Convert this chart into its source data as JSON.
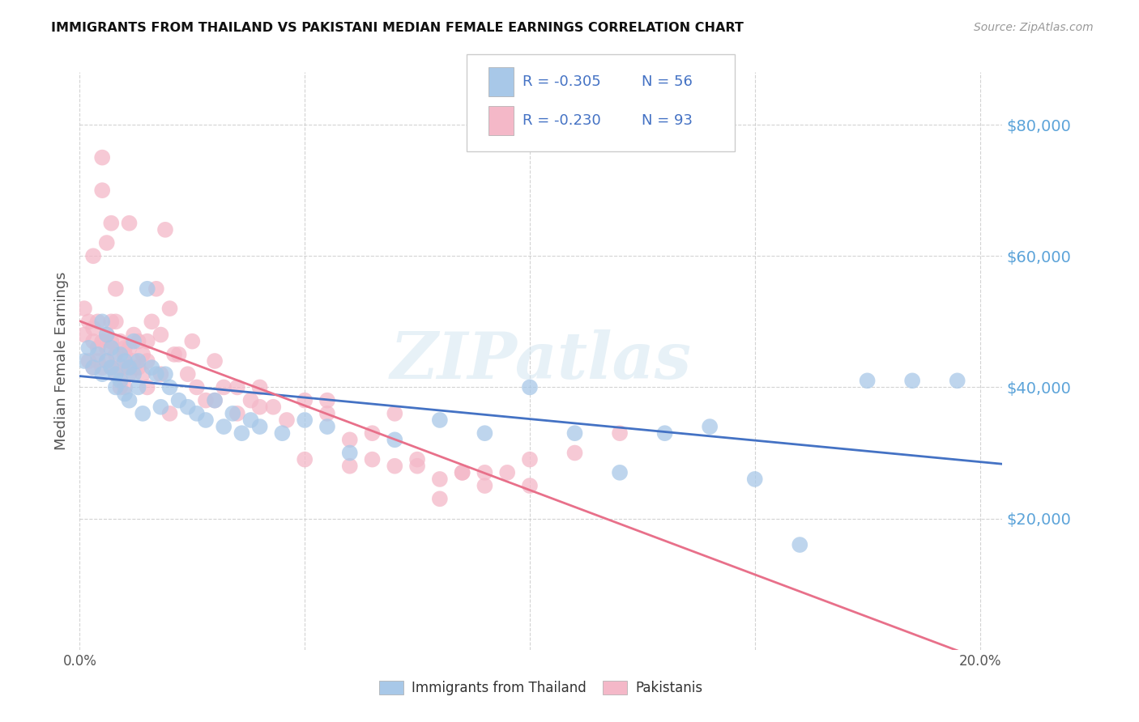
{
  "title": "IMMIGRANTS FROM THAILAND VS PAKISTANI MEDIAN FEMALE EARNINGS CORRELATION CHART",
  "source": "Source: ZipAtlas.com",
  "ylabel": "Median Female Earnings",
  "yticks": [
    20000,
    40000,
    60000,
    80000
  ],
  "ytick_labels": [
    "$20,000",
    "$40,000",
    "$60,000",
    "$80,000"
  ],
  "xticks": [
    0.0,
    0.05,
    0.1,
    0.15,
    0.2
  ],
  "xtick_labels": [
    "0.0%",
    "",
    "",
    "",
    "20.0%"
  ],
  "xlim": [
    0.0,
    0.205
  ],
  "ylim": [
    0,
    88000
  ],
  "legend_r1": "R = -0.305",
  "legend_n1": "N = 56",
  "legend_r2": "R = -0.230",
  "legend_n2": "N = 93",
  "color_thailand": "#a8c8e8",
  "color_pakistan": "#f4b8c8",
  "color_thailand_line": "#4472c4",
  "color_pakistan_line": "#e8708a",
  "color_ytick": "#5ba3d9",
  "background_color": "#ffffff",
  "watermark": "ZIPatlas",
  "thailand_x": [
    0.001,
    0.002,
    0.003,
    0.004,
    0.005,
    0.005,
    0.006,
    0.006,
    0.007,
    0.007,
    0.008,
    0.008,
    0.009,
    0.009,
    0.01,
    0.01,
    0.011,
    0.011,
    0.012,
    0.012,
    0.013,
    0.013,
    0.014,
    0.015,
    0.016,
    0.017,
    0.018,
    0.019,
    0.02,
    0.022,
    0.024,
    0.026,
    0.028,
    0.03,
    0.032,
    0.034,
    0.036,
    0.038,
    0.04,
    0.045,
    0.05,
    0.055,
    0.06,
    0.07,
    0.08,
    0.09,
    0.1,
    0.11,
    0.12,
    0.13,
    0.14,
    0.15,
    0.16,
    0.175,
    0.185,
    0.195
  ],
  "thailand_y": [
    44000,
    46000,
    43000,
    45000,
    42000,
    50000,
    48000,
    44000,
    43000,
    46000,
    42000,
    40000,
    45000,
    41000,
    44000,
    39000,
    43000,
    38000,
    47000,
    42000,
    44000,
    40000,
    36000,
    55000,
    43000,
    42000,
    37000,
    42000,
    40000,
    38000,
    37000,
    36000,
    35000,
    38000,
    34000,
    36000,
    33000,
    35000,
    34000,
    33000,
    35000,
    34000,
    30000,
    32000,
    35000,
    33000,
    40000,
    33000,
    27000,
    33000,
    34000,
    26000,
    16000,
    41000,
    41000,
    41000
  ],
  "pakistan_x": [
    0.001,
    0.001,
    0.002,
    0.002,
    0.003,
    0.003,
    0.003,
    0.004,
    0.004,
    0.004,
    0.005,
    0.005,
    0.005,
    0.006,
    0.006,
    0.006,
    0.007,
    0.007,
    0.007,
    0.007,
    0.008,
    0.008,
    0.008,
    0.009,
    0.009,
    0.009,
    0.01,
    0.01,
    0.01,
    0.011,
    0.011,
    0.011,
    0.012,
    0.012,
    0.013,
    0.013,
    0.014,
    0.014,
    0.015,
    0.015,
    0.016,
    0.017,
    0.018,
    0.019,
    0.02,
    0.021,
    0.022,
    0.024,
    0.026,
    0.028,
    0.03,
    0.032,
    0.035,
    0.038,
    0.04,
    0.043,
    0.046,
    0.05,
    0.055,
    0.06,
    0.065,
    0.07,
    0.075,
    0.08,
    0.085,
    0.09,
    0.095,
    0.1,
    0.11,
    0.12,
    0.005,
    0.003,
    0.006,
    0.008,
    0.01,
    0.012,
    0.015,
    0.018,
    0.02,
    0.025,
    0.03,
    0.035,
    0.04,
    0.05,
    0.06,
    0.07,
    0.08,
    0.09,
    0.1,
    0.055,
    0.065,
    0.075,
    0.085
  ],
  "pakistan_y": [
    48000,
    52000,
    44000,
    50000,
    47000,
    43000,
    49000,
    46000,
    50000,
    44000,
    47000,
    43000,
    75000,
    46000,
    48000,
    44000,
    65000,
    50000,
    47000,
    43000,
    50000,
    45000,
    42000,
    47000,
    43000,
    40000,
    46000,
    43000,
    40000,
    46000,
    42000,
    65000,
    48000,
    44000,
    47000,
    43000,
    45000,
    42000,
    44000,
    40000,
    50000,
    55000,
    48000,
    64000,
    52000,
    45000,
    45000,
    42000,
    40000,
    38000,
    38000,
    40000,
    36000,
    38000,
    40000,
    37000,
    35000,
    38000,
    36000,
    32000,
    29000,
    28000,
    29000,
    26000,
    27000,
    25000,
    27000,
    29000,
    30000,
    33000,
    70000,
    60000,
    62000,
    55000,
    45000,
    43000,
    47000,
    42000,
    36000,
    47000,
    44000,
    40000,
    37000,
    29000,
    28000,
    36000,
    23000,
    27000,
    25000,
    38000,
    33000,
    28000,
    27000
  ]
}
